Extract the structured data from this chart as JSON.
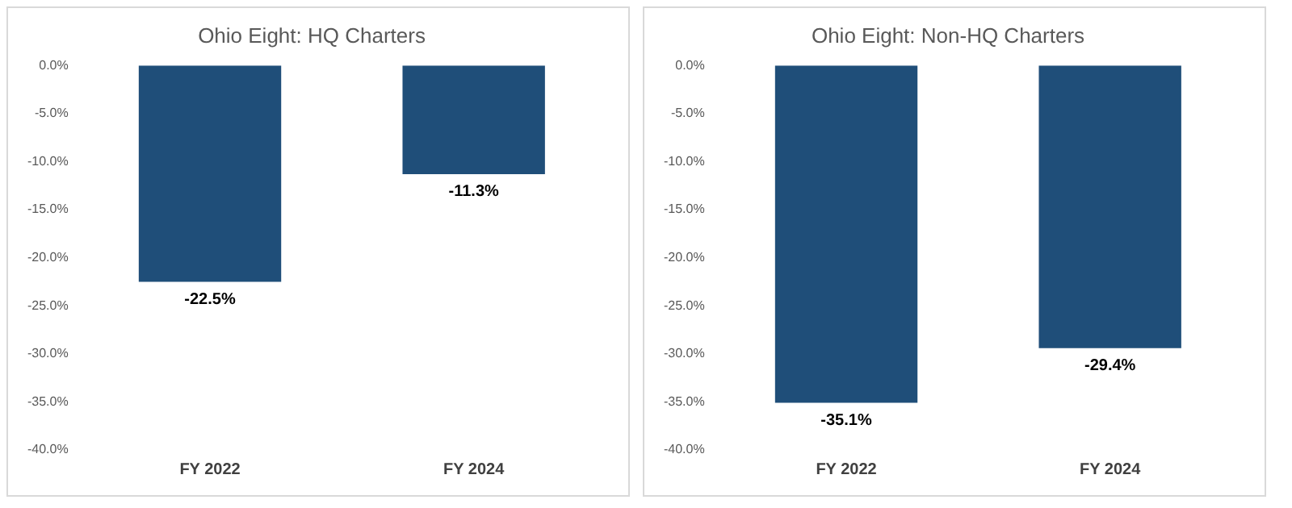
{
  "chart_data": [
    {
      "type": "bar",
      "title": "Ohio Eight: HQ Charters",
      "categories": [
        "FY 2022",
        "FY 2024"
      ],
      "values": [
        -22.5,
        -11.3
      ],
      "color": "#1f4e79",
      "value_labels": [
        "-22.5%",
        "-11.3%"
      ],
      "ylim": [
        -40,
        0
      ],
      "yticks": [
        {
          "value": 0,
          "label": "0.0%"
        },
        {
          "value": -5,
          "label": "-5.0%"
        },
        {
          "value": -10,
          "label": "-10.0%"
        },
        {
          "value": -15,
          "label": "-15.0%"
        },
        {
          "value": -20,
          "label": "-20.0%"
        },
        {
          "value": -25,
          "label": "-25.0%"
        },
        {
          "value": -30,
          "label": "-30.0%"
        },
        {
          "value": -35,
          "label": "-35.0%"
        },
        {
          "value": -40,
          "label": "-40.0%"
        }
      ],
      "grid": false,
      "legend": false
    },
    {
      "type": "bar",
      "title": "Ohio Eight: Non-HQ Charters",
      "categories": [
        "FY 2022",
        "FY 2024"
      ],
      "values": [
        -35.1,
        -29.4
      ],
      "color": "#1f4e79",
      "value_labels": [
        "-35.1%",
        "-29.4%"
      ],
      "ylim": [
        -40,
        0
      ],
      "yticks": [
        {
          "value": 0,
          "label": "0.0%"
        },
        {
          "value": -5,
          "label": "-5.0%"
        },
        {
          "value": -10,
          "label": "-10.0%"
        },
        {
          "value": -15,
          "label": "-15.0%"
        },
        {
          "value": -20,
          "label": "-20.0%"
        },
        {
          "value": -25,
          "label": "-25.0%"
        },
        {
          "value": -30,
          "label": "-30.0%"
        },
        {
          "value": -35,
          "label": "-35.0%"
        },
        {
          "value": -40,
          "label": "-40.0%"
        }
      ],
      "grid": false,
      "legend": false
    }
  ]
}
